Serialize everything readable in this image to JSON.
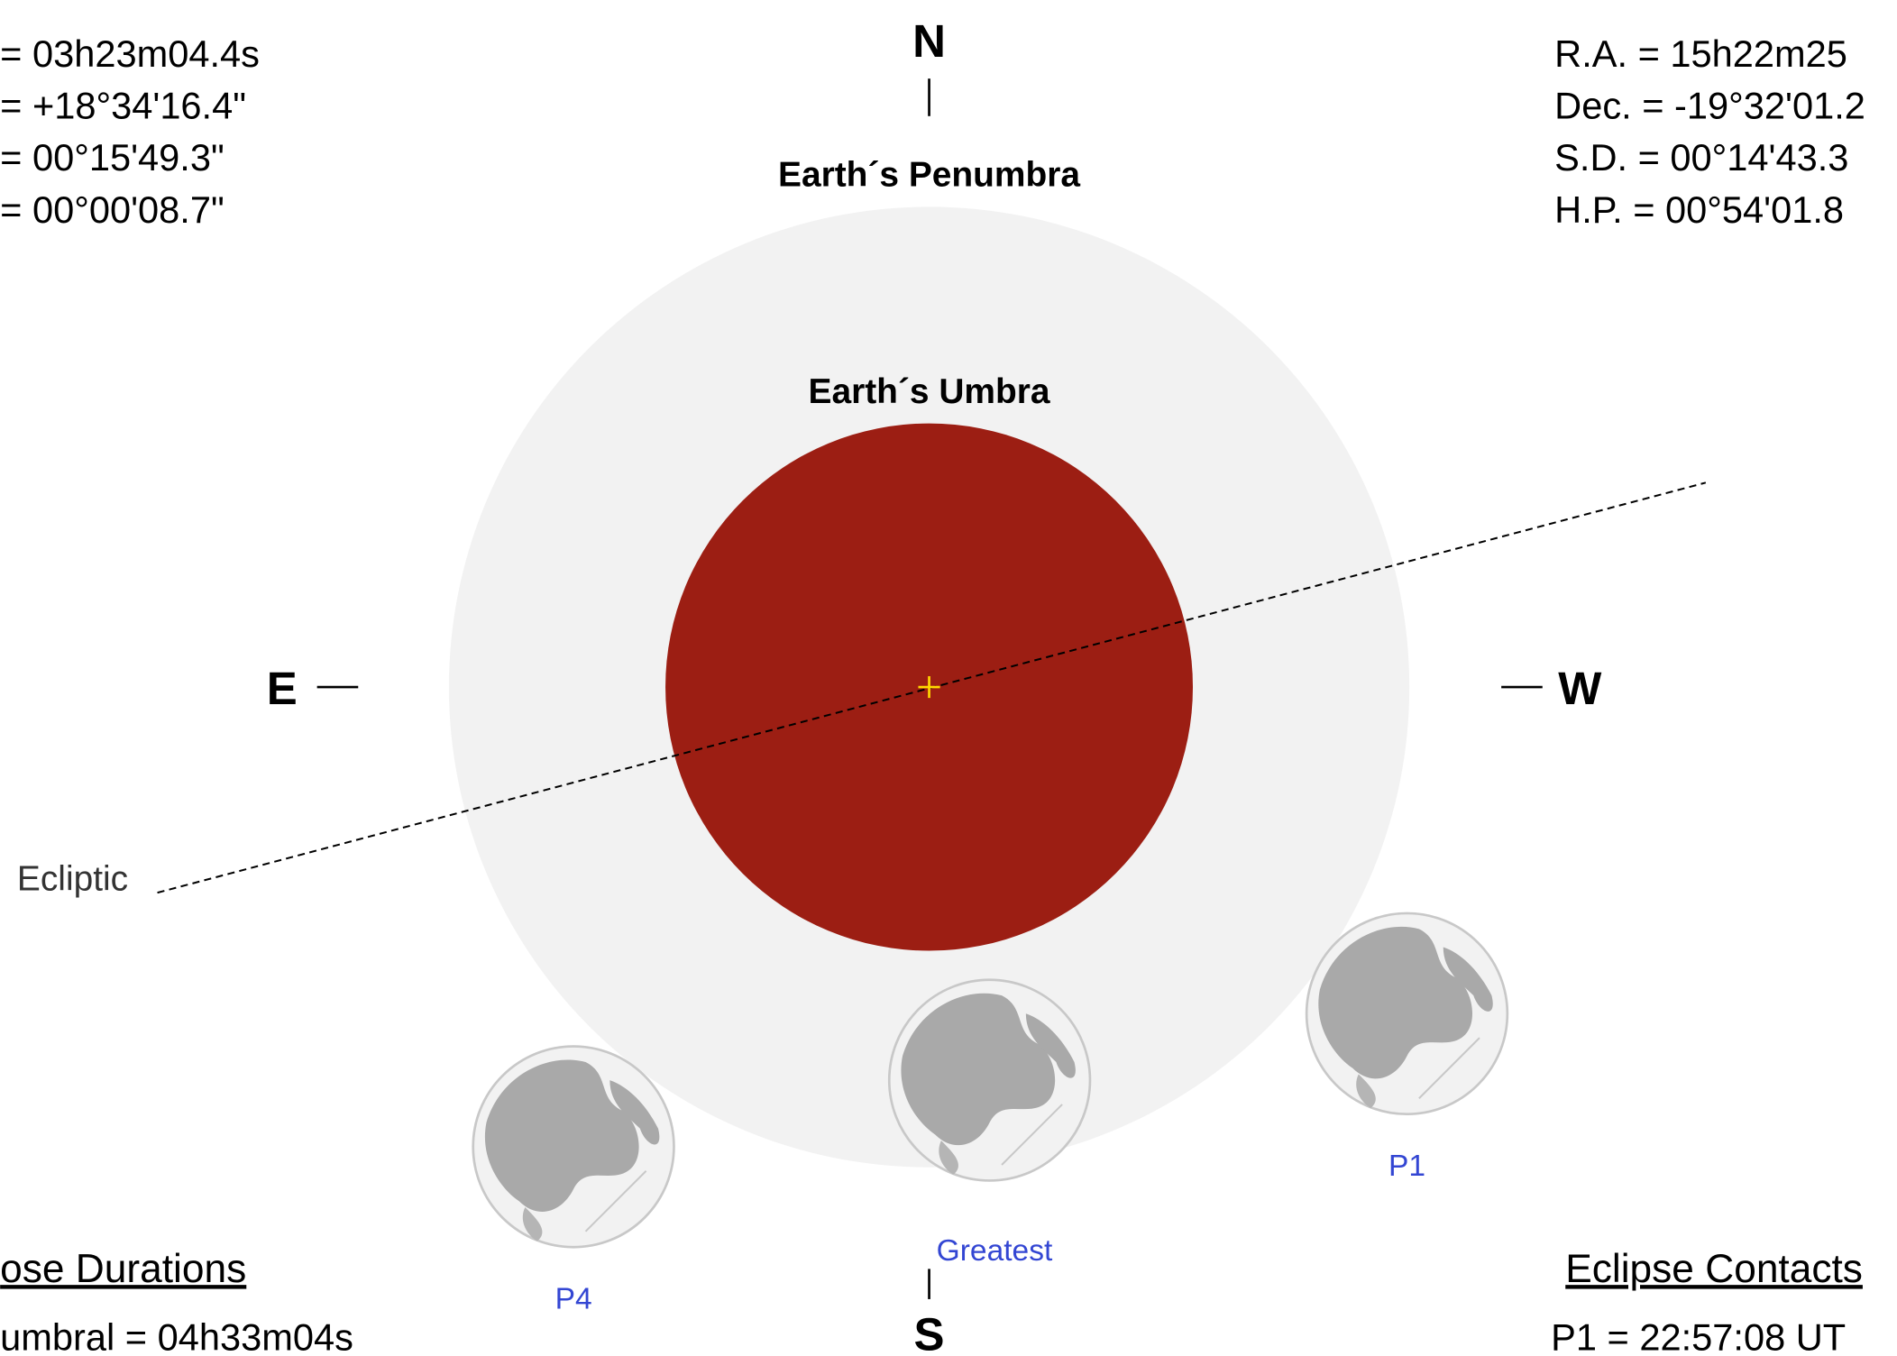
{
  "left_info": [
    "=  03h23m04.4s",
    "= +18°34'16.4\"",
    "=  00°15'49.3\"",
    "=  00°00'08.7\""
  ],
  "right_info": [
    "R.A. =  15h22m25",
    "Dec. = -19°32'01.2",
    "S.D. =  00°14'43.3",
    "H.P. =  00°54'01.8"
  ],
  "compass": {
    "north": "N",
    "south": "S",
    "east": "E",
    "west": "W"
  },
  "penumbra_label": "Earth´s Penumbra",
  "umbra_label": "Earth´s Umbra",
  "ecliptic_label": "Ecliptic",
  "moons": [
    {
      "label": "P4"
    },
    {
      "label": "Greatest"
    },
    {
      "label": "P1"
    }
  ],
  "durations": {
    "heading": "ose Durations",
    "lines": [
      "umbral = 04h33m04s"
    ]
  },
  "contacts": {
    "heading": "Eclipse Contacts",
    "lines": [
      "P1 = 22:57:08 UT"
    ]
  }
}
